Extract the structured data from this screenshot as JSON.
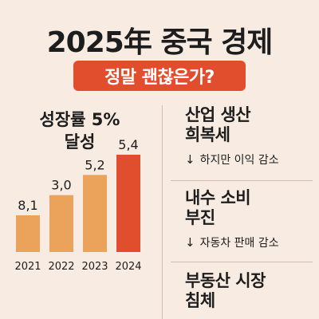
{
  "header": {
    "title": "2025年 중국 경제",
    "banner": "정말 괜찮은가?"
  },
  "chart_section": {
    "title_line1": "성장률 5%",
    "title_line2": "달성"
  },
  "chart_data": {
    "type": "bar",
    "categories": [
      "2021",
      "2022",
      "2023",
      "2024"
    ],
    "values": [
      8.1,
      3.0,
      5.2,
      5.4
    ],
    "value_labels": [
      "8,1",
      "3,0",
      "5,2",
      "5,4"
    ],
    "colors": [
      "#eba35c",
      "#eba35c",
      "#eba35c",
      "#e04e2d"
    ]
  },
  "items": [
    {
      "line1": "산업 생산",
      "line2": "희복세",
      "note": "하지만 이익 감소",
      "icon": "down-arrow-icon"
    },
    {
      "line1": "내수 소비",
      "line2": "부진",
      "note": "자동차 판매 감소",
      "icon": "down-arrow-icon"
    },
    {
      "line1": "부동산 시장",
      "line2": "침체"
    }
  ],
  "colors": {
    "background": "#f8ece2",
    "accent": "#e04e2d",
    "bar": "#eba35c"
  }
}
